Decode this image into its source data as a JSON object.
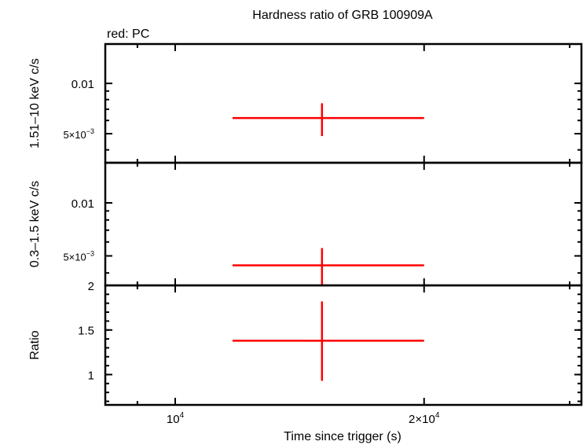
{
  "chart_data": {
    "type": "scatter",
    "title": "Hardness ratio of GRB 100909A",
    "legend_note": "red: PC",
    "xlabel": "Time since trigger (s)",
    "x_scale": "log",
    "xlim": [
      8230,
      31000
    ],
    "x_ticks": [
      {
        "value": 10000,
        "base": "10",
        "exp": "4",
        "mult": ""
      },
      {
        "value": 20000,
        "base": "10",
        "exp": "4",
        "mult": "2×"
      }
    ],
    "series_color": "#ff0000",
    "panels": [
      {
        "ylabel": "1.51–10 keV c/s",
        "y_scale": "log",
        "ylim": [
          0.00335,
          0.0172
        ],
        "y_ticks": [
          {
            "value": 0.01,
            "label": "0.01"
          },
          {
            "value": 0.005,
            "mant": "5×10",
            "exp": "−3"
          }
        ],
        "points": [
          {
            "x": 15050,
            "x_lo": 11730,
            "x_hi": 20000,
            "y": 0.0062,
            "y_lo": 0.00484,
            "y_hi": 0.0076
          }
        ]
      },
      {
        "ylabel": "0.3–1.5 keV c/s",
        "y_scale": "log",
        "ylim": [
          0.0034,
          0.0169
        ],
        "y_ticks": [
          {
            "value": 0.01,
            "label": "0.01"
          },
          {
            "value": 0.005,
            "mant": "5×10",
            "exp": "−3"
          }
        ],
        "points": [
          {
            "x": 15050,
            "x_lo": 11730,
            "x_hi": 20000,
            "y": 0.00442,
            "y_lo": 0.0032,
            "y_hi": 0.00554
          }
        ]
      },
      {
        "ylabel": "Ratio",
        "y_scale": "linear",
        "ylim": [
          0.66,
          2.0
        ],
        "y_ticks": [
          {
            "value": 2,
            "label": "2"
          },
          {
            "value": 1.5,
            "label": "1.5"
          },
          {
            "value": 1,
            "label": "1"
          }
        ],
        "points": [
          {
            "x": 15050,
            "x_lo": 11730,
            "x_hi": 20000,
            "y": 1.38,
            "y_lo": 0.93,
            "y_hi": 1.82
          }
        ]
      }
    ]
  }
}
